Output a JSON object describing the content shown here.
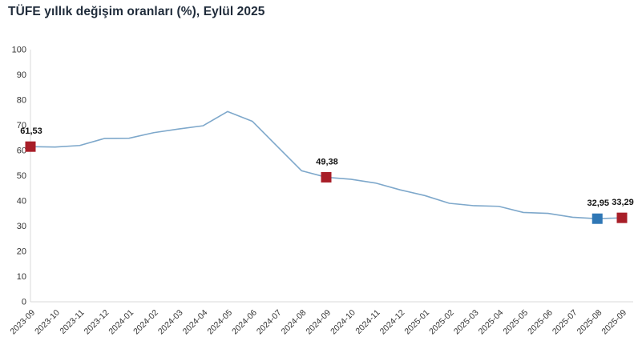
{
  "header": {
    "title": "TÜFE yıllık değişim oranları (%), Eylül 2025"
  },
  "chart_data": {
    "type": "line",
    "title": "TÜFE yıllık değişim oranları (%), Eylül 2025",
    "x": [
      "2023-09",
      "2023-10",
      "2023-11",
      "2023-12",
      "2024-01",
      "2024-02",
      "2024-03",
      "2024-04",
      "2024-05",
      "2024-06",
      "2024-07",
      "2024-08",
      "2024-09",
      "2024-10",
      "2024-11",
      "2024-12",
      "2025-01",
      "2025-02",
      "2025-03",
      "2025-04",
      "2025-05",
      "2025-06",
      "2025-07",
      "2025-08",
      "2025-09"
    ],
    "values": [
      61.53,
      61.36,
      61.98,
      64.77,
      64.86,
      67.07,
      68.5,
      69.8,
      75.45,
      71.6,
      61.78,
      51.97,
      49.38,
      48.58,
      47.09,
      44.38,
      42.12,
      39.05,
      38.1,
      37.86,
      35.41,
      35.05,
      33.52,
      32.95,
      33.29
    ],
    "ylim": [
      0,
      100
    ],
    "y_ticks": [
      0,
      10,
      20,
      30,
      40,
      50,
      60,
      70,
      80,
      90,
      100
    ],
    "grid": false,
    "legend": "none",
    "annotations": [
      {
        "x": "2023-09",
        "label": "61,53",
        "marker_color": "#a81e28"
      },
      {
        "x": "2024-09",
        "label": "49,38",
        "marker_color": "#a81e28"
      },
      {
        "x": "2025-08",
        "label": "32,95",
        "marker_color": "#2f77b5"
      },
      {
        "x": "2025-09",
        "label": "33,29",
        "marker_color": "#a81e28"
      }
    ],
    "colors": {
      "line": "#7ea8cb",
      "axis": "#d9d9d9",
      "tick_text": "#333333",
      "annotation_text": "#111111",
      "title_text": "#1f2b3a"
    }
  }
}
